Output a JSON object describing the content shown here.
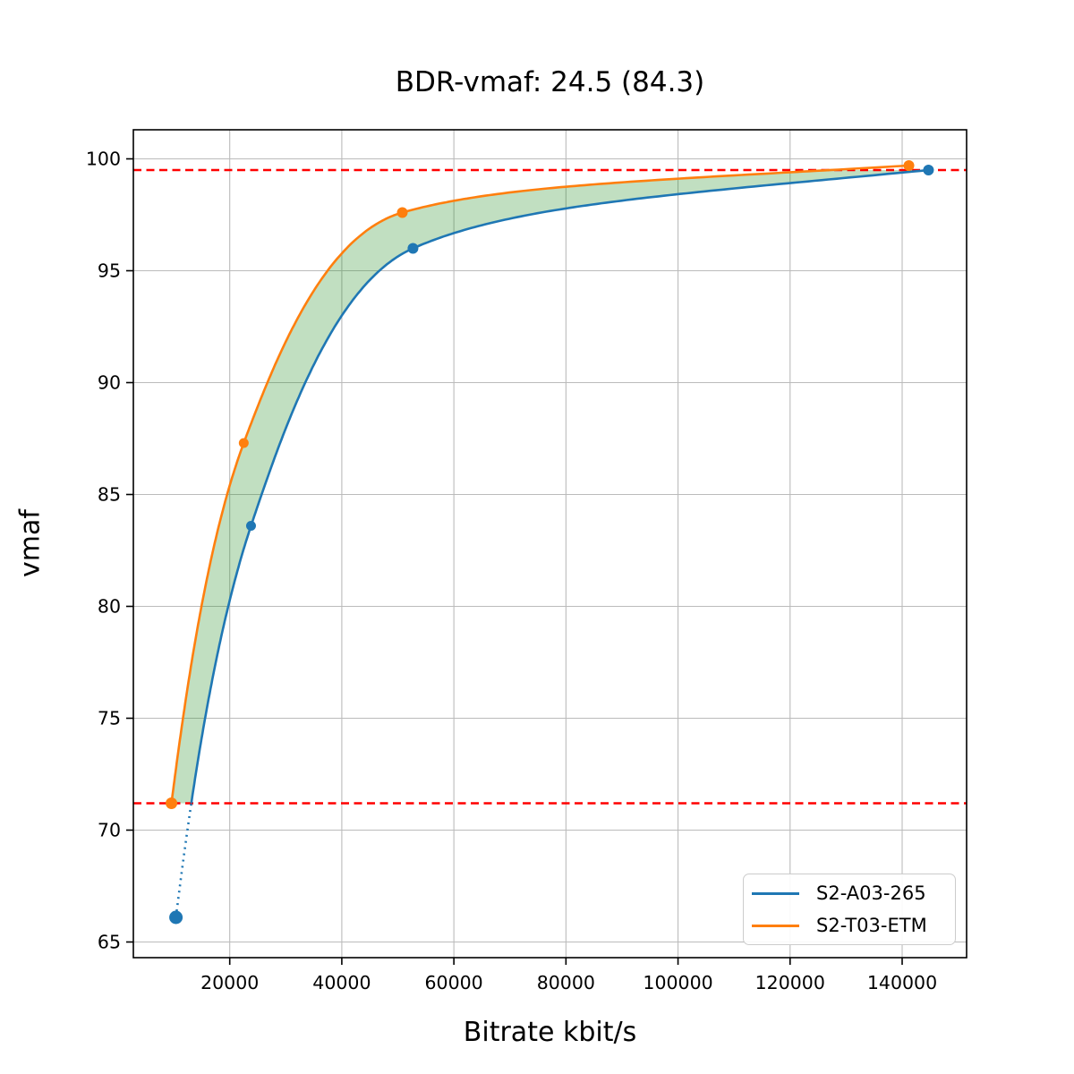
{
  "chart_data": {
    "type": "line",
    "title": "BDR-vmaf: 24.5 (84.3)",
    "xlabel": "Bitrate kbit/s",
    "ylabel": "vmaf",
    "xlim": [
      2800,
      151500
    ],
    "ylim": [
      64.3,
      101.3
    ],
    "x_ticks": [
      20000,
      40000,
      60000,
      80000,
      100000,
      120000,
      140000
    ],
    "y_ticks": [
      65,
      70,
      75,
      80,
      85,
      90,
      95,
      100
    ],
    "grid": true,
    "grid_color": "#bbbbbb",
    "legend_position": "lower right",
    "series": [
      {
        "name": "S2-A03-265",
        "color": "#1f77b4",
        "x": [
          10400,
          23800,
          52700,
          144700
        ],
        "y": [
          66.1,
          83.6,
          96.0,
          99.5
        ],
        "marker_sizes": [
          7.5,
          5.5,
          6,
          6
        ],
        "below_lower_bound_style": "dotted"
      },
      {
        "name": "S2-T03-ETM",
        "color": "#ff7f0e",
        "x": [
          9600,
          22500,
          50800,
          141200
        ],
        "y": [
          71.2,
          87.3,
          97.6,
          99.7
        ],
        "marker_sizes": [
          6.5,
          5.5,
          6,
          6
        ],
        "below_lower_bound_style": "none"
      }
    ],
    "bound_lines": {
      "color": "#ff0000",
      "style": "dashed",
      "lower_vmaf": 71.2,
      "upper_vmaf": 99.5
    },
    "fill_between": {
      "color": "#228b22",
      "opacity": 0.28,
      "quality_range": [
        71.2,
        99.5
      ]
    }
  },
  "layout_colors": {
    "spine": "#000000",
    "tick_label": "#000000"
  }
}
